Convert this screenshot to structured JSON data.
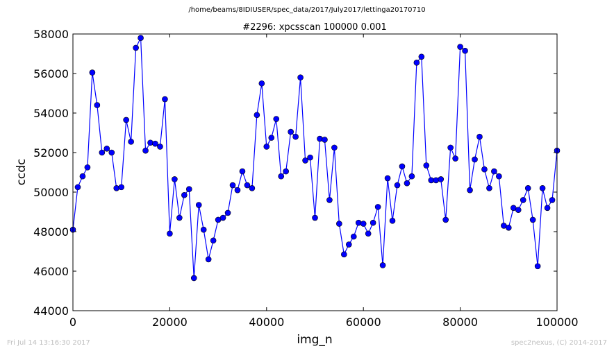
{
  "figure": {
    "suptitle": "/home/beams/8IDIUSER/spec_data/2017/July2017/lettinga20170710",
    "footer_left": "Fri Jul 14 13:16:30 2017",
    "footer_right": "spec2nexus, (C) 2014-2017"
  },
  "chart_data": {
    "type": "line",
    "title": "#2296: xpcsscan 100000 0.001",
    "xlabel": "img_n",
    "ylabel": "ccdc",
    "xlim": [
      0,
      100000
    ],
    "ylim": [
      44000,
      58000
    ],
    "xticks": [
      0,
      20000,
      40000,
      60000,
      80000,
      100000
    ],
    "yticks": [
      44000,
      46000,
      48000,
      50000,
      52000,
      54000,
      56000,
      58000
    ],
    "grid": false,
    "legend": "none",
    "marker": "circle",
    "color": "#0000ff",
    "series": [
      {
        "x": [
          0,
          1000,
          2000,
          3000,
          4000,
          5000,
          6000,
          7000,
          8000,
          9000,
          10000,
          11000,
          12000,
          13000,
          14000,
          15000,
          16000,
          17000,
          18000,
          19000,
          20000,
          21000,
          22000,
          23000,
          24000,
          25000,
          26000,
          27000,
          28000,
          29000,
          30000,
          31000,
          32000,
          33000,
          34000,
          35000,
          36000,
          37000,
          38000,
          39000,
          40000,
          41000,
          42000,
          43000,
          44000,
          45000,
          46000,
          47000,
          48000,
          49000,
          50000,
          51000,
          52000,
          53000,
          54000,
          55000,
          56000,
          57000,
          58000,
          59000,
          60000,
          61000,
          62000,
          63000,
          64000,
          65000,
          66000,
          67000,
          68000,
          69000,
          70000,
          71000,
          72000,
          73000,
          74000,
          75000,
          76000,
          77000,
          78000,
          79000,
          80000,
          81000,
          82000,
          83000,
          84000,
          85000,
          86000,
          87000,
          88000,
          89000,
          90000,
          91000,
          92000,
          93000,
          94000,
          95000,
          96000,
          97000,
          98000,
          99000,
          100000
        ],
        "y": [
          48100,
          50250,
          50800,
          51250,
          56050,
          54400,
          52000,
          52200,
          52000,
          50200,
          50250,
          53650,
          52550,
          57300,
          57800,
          52100,
          52500,
          52450,
          52300,
          54700,
          47900,
          50650,
          48700,
          49850,
          50150,
          45650,
          49350,
          48100,
          46600,
          47550,
          48600,
          48700,
          48950,
          50350,
          50100,
          51050,
          50350,
          50200,
          53900,
          55500,
          52300,
          52750,
          53700,
          50800,
          51050,
          53050,
          52800,
          55800,
          51600,
          51750,
          48700,
          52700,
          52650,
          49600,
          52250,
          48400,
          46850,
          47350,
          47750,
          48450,
          48400,
          47900,
          48450,
          49250,
          46300,
          50700,
          48550,
          50350,
          51300,
          50450,
          50800,
          56550,
          56850,
          51350,
          50600,
          50600,
          50650,
          48600,
          52250,
          51700,
          57350,
          57150,
          50100,
          51650,
          52800,
          51150,
          50200,
          51050,
          50800,
          48300,
          48200,
          49200,
          49100,
          49600,
          50200,
          48600,
          46250,
          50200,
          49200,
          49600,
          52100
        ]
      }
    ]
  }
}
